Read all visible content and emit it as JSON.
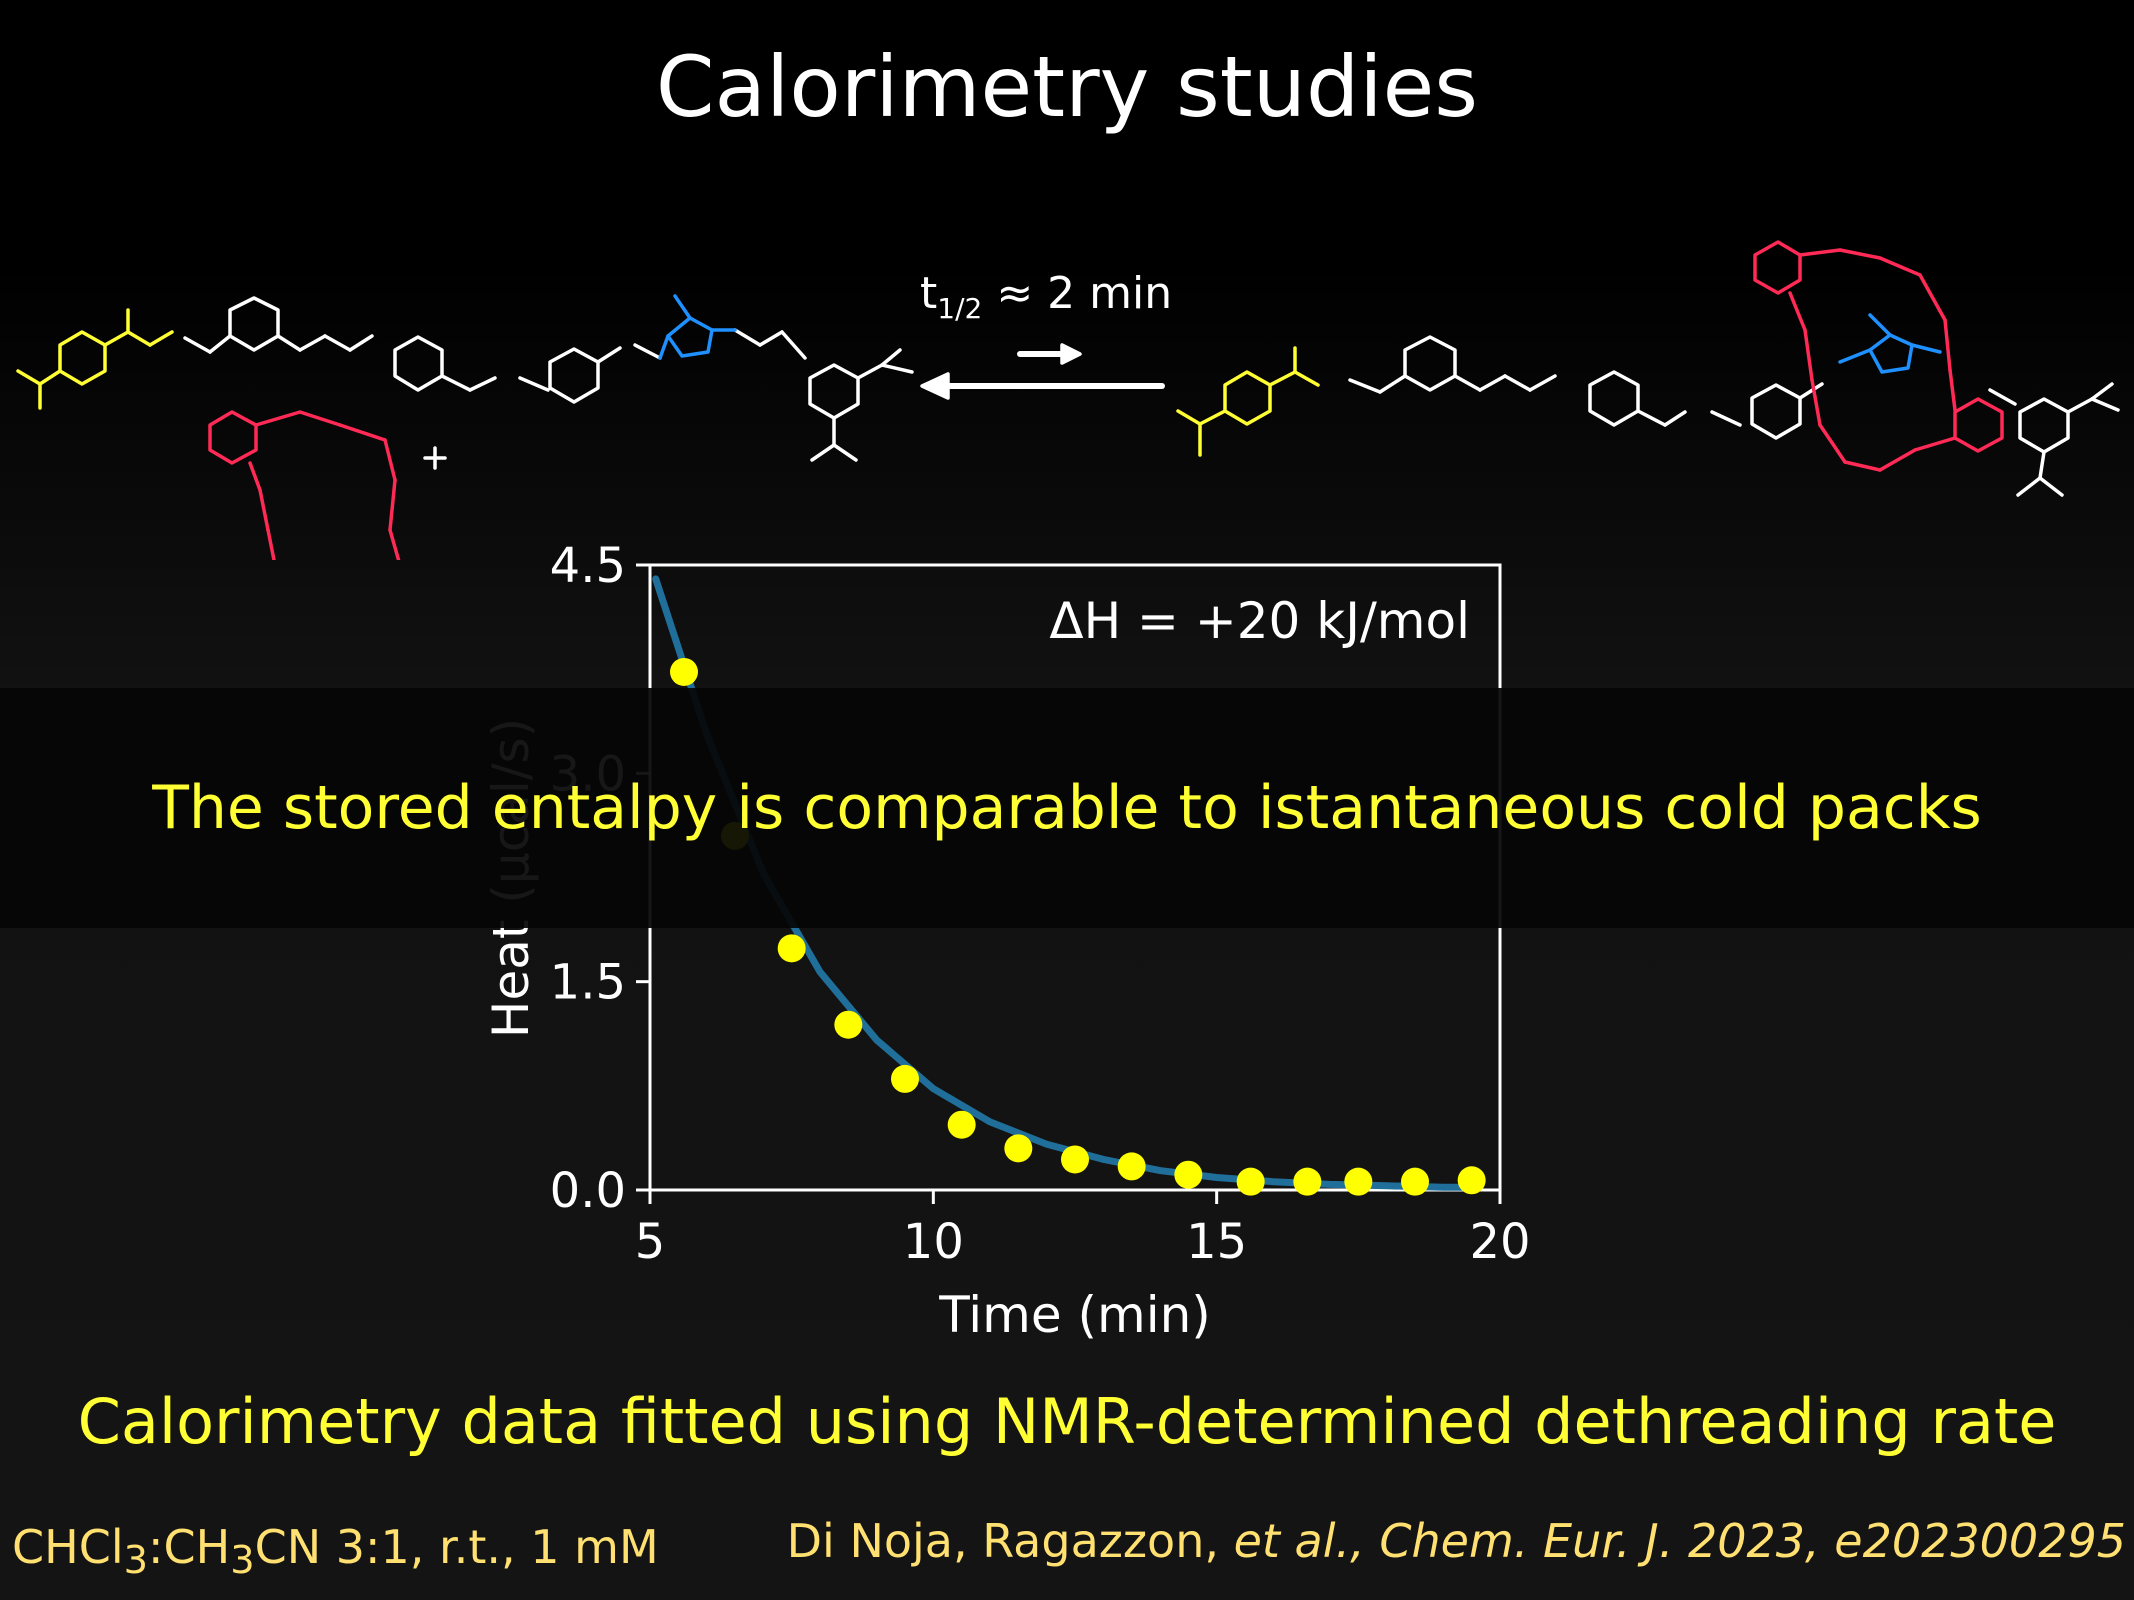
{
  "title": "Calorimetry studies",
  "reaction": {
    "rate_label_prefix": "t",
    "rate_label_sub": "1/2",
    "rate_label_suffix": " ≈ 2 min"
  },
  "colors": {
    "yellow_text": "#ffff33",
    "citation": "#ffe070",
    "curve": "#1f6f9a",
    "points": "#ffff00",
    "crown_ether": "#ff2a55",
    "triazolium": "#1e90ff"
  },
  "banner": {
    "text": "The stored entalpy is comparable to istantaneous cold packs"
  },
  "chart_data": {
    "type": "scatter",
    "xlabel": "Time (min)",
    "ylabel": "Heat (µcal/s)",
    "xlim": [
      5,
      20
    ],
    "ylim": [
      0,
      4.5
    ],
    "x_ticks": [
      "5",
      "10",
      "15",
      "20"
    ],
    "y_ticks": [
      "0.0",
      "1.5",
      "3.0",
      "4.5"
    ],
    "annotation": "ΔH = +20 kJ/mol",
    "series": [
      {
        "style": "markers",
        "x": [
          5.6,
          6.5,
          7.5,
          8.5,
          9.5,
          10.5,
          11.5,
          12.5,
          13.5,
          14.5,
          15.6,
          16.6,
          17.5,
          18.5,
          19.5
        ],
        "y": [
          3.73,
          2.55,
          1.74,
          1.19,
          0.8,
          0.47,
          0.3,
          0.22,
          0.17,
          0.11,
          0.06,
          0.06,
          0.06,
          0.06,
          0.07
        ]
      },
      {
        "style": "fit-line",
        "x": [
          5.1,
          6.0,
          7.0,
          8.0,
          9.0,
          10.0,
          11.0,
          12.0,
          13.0,
          14.0,
          15.0,
          16.0,
          17.0,
          18.0,
          19.0,
          19.6
        ],
        "y": [
          4.4,
          3.28,
          2.28,
          1.57,
          1.08,
          0.73,
          0.49,
          0.33,
          0.22,
          0.14,
          0.09,
          0.06,
          0.04,
          0.03,
          0.02,
          0.02
        ]
      }
    ]
  },
  "footer": {
    "summary": "Calorimetry data fitted using NMR-determined dethreading rate",
    "conditions_pre": "CHCl",
    "conditions_sub1": "3",
    "conditions_mid": ":CH",
    "conditions_sub2": "3",
    "conditions_post": "CN 3:1, r.t., 1 mM",
    "citation_authors": "Di Noja, Ragazzon, ",
    "citation_italic": "et al., Chem. Eur. J. 2023, e202300295"
  }
}
